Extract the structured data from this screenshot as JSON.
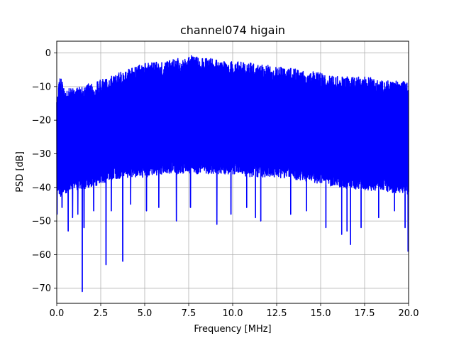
{
  "chart_data": {
    "type": "line",
    "title": "channel074 higain",
    "xlabel": "Frequency [MHz]",
    "ylabel": "PSD [dB]",
    "xlim": [
      0,
      20
    ],
    "ylim": [
      -74.5,
      3.5
    ],
    "xticks": [
      0,
      2.5,
      5,
      7.5,
      10,
      12.5,
      15,
      17.5,
      20
    ],
    "xtick_labels": [
      "0.0",
      "2.5",
      "5.0",
      "7.5",
      "10.0",
      "12.5",
      "15.0",
      "17.5",
      "20.0"
    ],
    "yticks": [
      0,
      -10,
      -20,
      -30,
      -40,
      -50,
      -60,
      -70
    ],
    "ytick_labels": [
      "0",
      "−10",
      "−20",
      "−30",
      "−40",
      "−50",
      "−60",
      "−70"
    ],
    "grid": true,
    "series": [
      {
        "color": "#0000ff",
        "envelope": {
          "x": [
            0.0,
            0.2,
            0.5,
            1.0,
            2.0,
            3.0,
            4.0,
            5.0,
            6.0,
            7.0,
            7.5,
            8.5,
            10.0,
            11.0,
            12.5,
            14.0,
            15.0,
            16.0,
            17.5,
            18.5,
            19.5,
            20.0
          ],
          "upper": [
            -12,
            -7,
            -11,
            -10,
            -9,
            -7,
            -5,
            -3,
            -2.5,
            -1.5,
            -0.5,
            -1.5,
            -2.5,
            -3,
            -4,
            -5,
            -6,
            -7,
            -7,
            -8,
            -8,
            -9
          ],
          "lower": [
            -40,
            -43,
            -42,
            -41,
            -40,
            -38,
            -37,
            -37,
            -36,
            -36,
            -36,
            -36,
            -36,
            -37,
            -37,
            -38,
            -39,
            -40,
            -41,
            -41,
            -42,
            -42
          ]
        },
        "dips": [
          {
            "x": 0.02,
            "y": -48
          },
          {
            "x": 0.3,
            "y": -46
          },
          {
            "x": 0.65,
            "y": -53
          },
          {
            "x": 0.9,
            "y": -49
          },
          {
            "x": 1.2,
            "y": -48
          },
          {
            "x": 1.45,
            "y": -71
          },
          {
            "x": 1.55,
            "y": -52
          },
          {
            "x": 2.1,
            "y": -47
          },
          {
            "x": 2.8,
            "y": -63
          },
          {
            "x": 3.1,
            "y": -47
          },
          {
            "x": 3.75,
            "y": -62
          },
          {
            "x": 4.2,
            "y": -45
          },
          {
            "x": 5.1,
            "y": -47
          },
          {
            "x": 5.8,
            "y": -46
          },
          {
            "x": 6.8,
            "y": -50
          },
          {
            "x": 7.6,
            "y": -46
          },
          {
            "x": 9.1,
            "y": -51
          },
          {
            "x": 9.9,
            "y": -48
          },
          {
            "x": 10.8,
            "y": -46
          },
          {
            "x": 11.3,
            "y": -49
          },
          {
            "x": 11.6,
            "y": -50
          },
          {
            "x": 13.3,
            "y": -48
          },
          {
            "x": 14.2,
            "y": -47
          },
          {
            "x": 15.3,
            "y": -52
          },
          {
            "x": 16.2,
            "y": -54
          },
          {
            "x": 16.5,
            "y": -53
          },
          {
            "x": 16.7,
            "y": -57
          },
          {
            "x": 17.3,
            "y": -52
          },
          {
            "x": 18.3,
            "y": -49
          },
          {
            "x": 19.2,
            "y": -47
          },
          {
            "x": 19.8,
            "y": -52
          },
          {
            "x": 19.97,
            "y": -59
          }
        ]
      }
    ]
  }
}
